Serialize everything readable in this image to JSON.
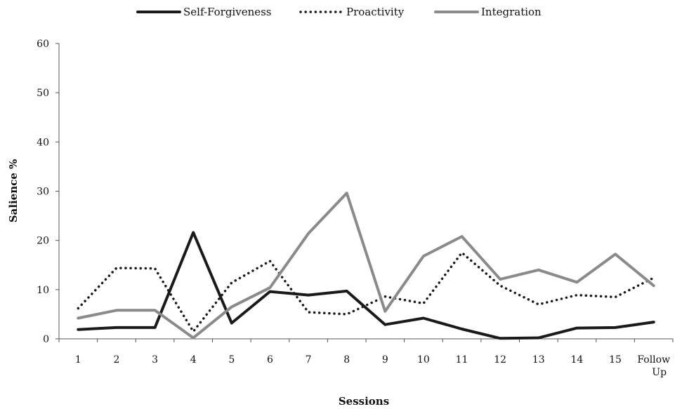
{
  "chart_data": {
    "type": "line",
    "xlabel": "Sessions",
    "ylabel": "Salience %",
    "ylim": [
      0,
      60
    ],
    "yticks": [
      0,
      10,
      20,
      30,
      40,
      50,
      60
    ],
    "grid": false,
    "legend_position": "top-center",
    "categories": [
      "1",
      "2",
      "3",
      "4",
      "5",
      "6",
      "7",
      "8",
      "9",
      "10",
      "11",
      "12",
      "13",
      "14",
      "15",
      "Follow Up"
    ],
    "series": [
      {
        "name": "Self-Forgiveness",
        "style": "solid",
        "color": "#1a1a1a",
        "values": [
          1.9,
          2.3,
          2.3,
          21.6,
          3.2,
          9.6,
          8.9,
          9.7,
          2.9,
          4.2,
          2.0,
          0.1,
          0.2,
          2.2,
          2.3,
          3.4
        ]
      },
      {
        "name": "Proactivity",
        "style": "dotted",
        "color": "#1a1a1a",
        "values": [
          6.2,
          14.4,
          14.3,
          1.5,
          11.4,
          15.8,
          5.4,
          5.0,
          8.6,
          7.2,
          17.5,
          10.8,
          7.0,
          8.9,
          8.5,
          12.4
        ]
      },
      {
        "name": "Integration",
        "style": "solid",
        "color": "#8a8a8a",
        "values": [
          4.2,
          5.8,
          5.8,
          0.2,
          6.5,
          10.4,
          21.4,
          29.6,
          5.6,
          16.8,
          20.8,
          12.1,
          14.0,
          11.5,
          17.2,
          10.8
        ]
      }
    ]
  }
}
